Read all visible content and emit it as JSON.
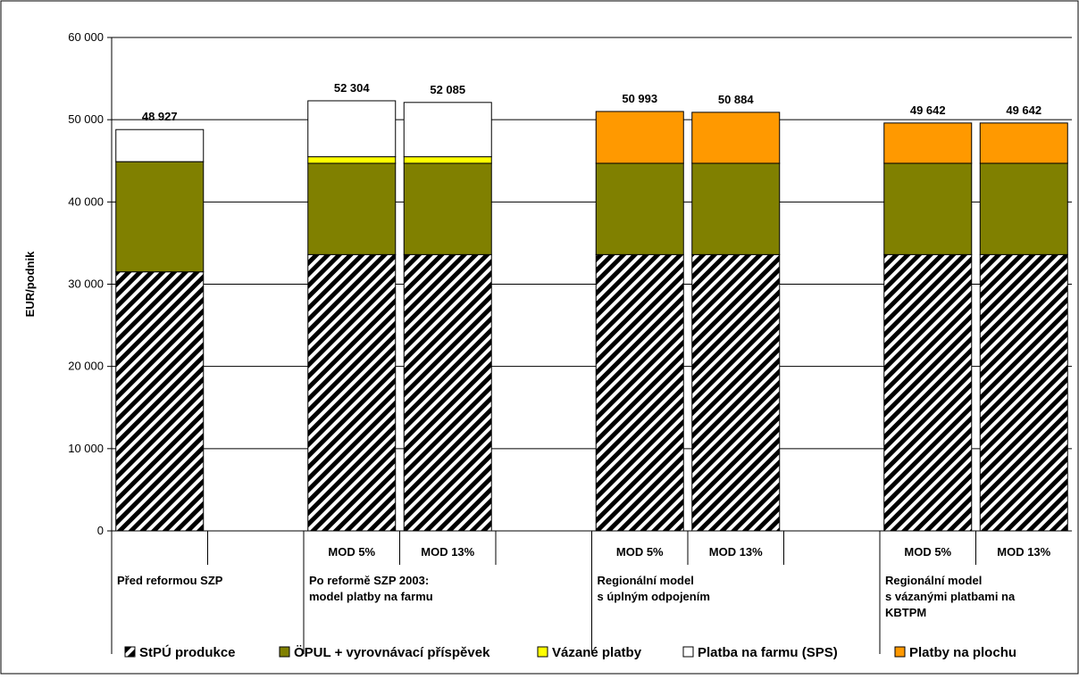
{
  "chart_data": {
    "type": "bar",
    "stacked": true,
    "ylabel": "EUR/podnik",
    "ylim": [
      0,
      60000
    ],
    "yticks": [
      0,
      10000,
      20000,
      30000,
      40000,
      50000,
      60000
    ],
    "ytick_labels": [
      "0",
      "10 000",
      "20 000",
      "30 000",
      "40 000",
      "50 000",
      "60 000"
    ],
    "grid": true,
    "legend_position": "bottom",
    "groups": [
      {
        "label_lines": [
          "Před reformou SZP"
        ],
        "bars": [
          {
            "sublabel": "",
            "total_label": "48 927",
            "stack": [
              31500,
              13400,
              0,
              0,
              3900
            ]
          }
        ]
      },
      {
        "label_lines": [
          "Po reformě SZP 2003:",
          "model platby na farmu"
        ],
        "bars": [
          {
            "sublabel": "MOD 5%",
            "total_label": "52 304",
            "stack": [
              33600,
              11100,
              800,
              0,
              6800
            ]
          },
          {
            "sublabel": "MOD 13%",
            "total_label": "52 085",
            "stack": [
              33600,
              11100,
              800,
              0,
              6600
            ]
          }
        ]
      },
      {
        "label_lines": [
          "Regionální model",
          "s úplným odpojením"
        ],
        "bars": [
          {
            "sublabel": "MOD 5%",
            "total_label": "50 993",
            "stack": [
              33600,
              11100,
              0,
              6300,
              0
            ]
          },
          {
            "sublabel": "MOD 13%",
            "total_label": "50 884",
            "stack": [
              33600,
              11100,
              0,
              6200,
              0
            ]
          }
        ]
      },
      {
        "label_lines": [
          "Regionální model",
          "s vázanými platbami na",
          "KBTPM"
        ],
        "bars": [
          {
            "sublabel": "MOD 5%",
            "total_label": "49 642",
            "stack": [
              33600,
              11100,
              0,
              4900,
              0
            ]
          },
          {
            "sublabel": "MOD 13%",
            "total_label": "49 642",
            "stack": [
              33600,
              11100,
              0,
              4900,
              0
            ]
          }
        ]
      }
    ],
    "series": [
      {
        "name": "StPÚ produkce",
        "color": "#000000",
        "pattern": "diagonal-stripes"
      },
      {
        "name": "ÖPUL + vyrovnávací příspěvek",
        "color": "#808000"
      },
      {
        "name": "Vázané platby",
        "color": "#ffff00"
      },
      {
        "name": "Platby na plochu",
        "color": "#ff9900"
      },
      {
        "name": "Platba na farmu (SPS)",
        "color": "#ffffff"
      }
    ],
    "legend_order": [
      0,
      1,
      2,
      4,
      3
    ]
  }
}
